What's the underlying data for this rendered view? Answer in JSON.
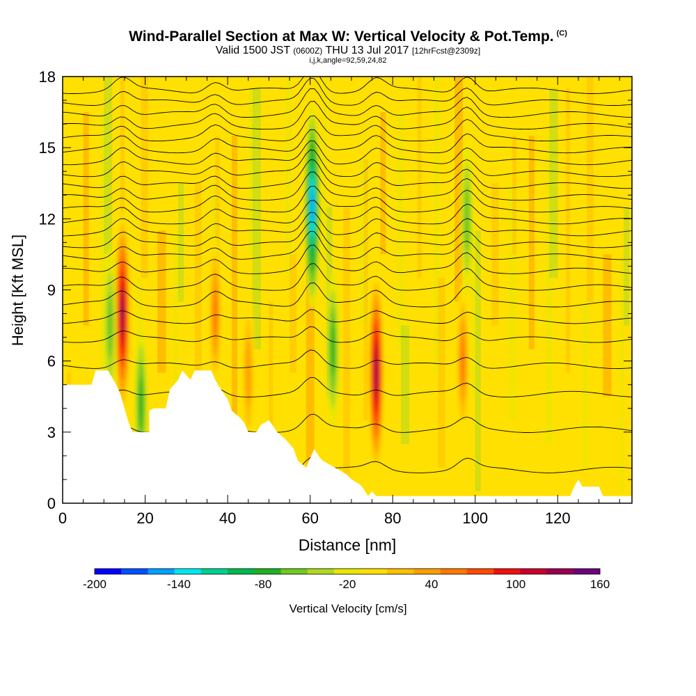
{
  "chart_data": {
    "type": "heatmap",
    "title": "Wind-Parallel Section at Max W: Vertical Velocity & Pot.Temp.",
    "title_suffix": "(C)",
    "subtitle_parts": [
      "Valid 1500 JST",
      "(0600Z)",
      "THU 13 Jul 2017",
      "[12hrFcst@2309z]"
    ],
    "subtitle2": "i,j,k,angle=92,59,24,82",
    "xlabel": "Distance [nm]",
    "ylabel": "Height [Kft MSL]",
    "xlim": [
      0,
      138
    ],
    "ylim": [
      0,
      18
    ],
    "xticks": [
      "0",
      "20",
      "40",
      "60",
      "80",
      "100",
      "120"
    ],
    "yticks": [
      "0",
      "3",
      "6",
      "9",
      "12",
      "15",
      "18"
    ],
    "colorbar": {
      "label": "Vertical Velocity [cm/s]",
      "range": [
        -200,
        160
      ],
      "step": 20,
      "tick_labels": [
        "-200",
        "-140",
        "-80",
        "-20",
        "40",
        "100",
        "160"
      ],
      "colors": [
        "#0000ff",
        "#0050ff",
        "#00a0ff",
        "#00e8f0",
        "#00d090",
        "#00b84c",
        "#20b020",
        "#70c820",
        "#b0d820",
        "#e8e800",
        "#ffe000",
        "#ffc000",
        "#ffa000",
        "#ff7800",
        "#ff4a00",
        "#f01010",
        "#c8002a",
        "#960050",
        "#6a0078"
      ]
    },
    "terrain_kft": [
      [
        0,
        5
      ],
      [
        7,
        5
      ],
      [
        8,
        5.6
      ],
      [
        11,
        5.6
      ],
      [
        13,
        5
      ],
      [
        14,
        4.6
      ],
      [
        15,
        4
      ],
      [
        16,
        3.4
      ],
      [
        17,
        3
      ],
      [
        21,
        3
      ],
      [
        21,
        3.9
      ],
      [
        22,
        4
      ],
      [
        25,
        4
      ],
      [
        26,
        4.8
      ],
      [
        28,
        5.2
      ],
      [
        29,
        5.6
      ],
      [
        31,
        5.2
      ],
      [
        32,
        5.6
      ],
      [
        33,
        5.6
      ],
      [
        36,
        5.6
      ],
      [
        37,
        5.2
      ],
      [
        38,
        4.9
      ],
      [
        40,
        4.4
      ],
      [
        41,
        3.9
      ],
      [
        43,
        3.6
      ],
      [
        44,
        3.4
      ],
      [
        45,
        3
      ],
      [
        47,
        3
      ],
      [
        48,
        3.3
      ],
      [
        50,
        3.5
      ],
      [
        52,
        3
      ],
      [
        54,
        2.7
      ],
      [
        56,
        2.3
      ],
      [
        57,
        1.8
      ],
      [
        59,
        1.5
      ],
      [
        60,
        1.9
      ],
      [
        61,
        2.3
      ],
      [
        62,
        2
      ],
      [
        63,
        1.8
      ],
      [
        65,
        1.6
      ],
      [
        67,
        1.4
      ],
      [
        69,
        1.2
      ],
      [
        70,
        1
      ],
      [
        72,
        0.8
      ],
      [
        73,
        0.6
      ],
      [
        74,
        0.3
      ],
      [
        75,
        0.5
      ],
      [
        76,
        0.3
      ],
      [
        78,
        0.3
      ],
      [
        123,
        0.3
      ],
      [
        124,
        0.7
      ],
      [
        125,
        1
      ],
      [
        126,
        0.7
      ],
      [
        130,
        0.7
      ],
      [
        131,
        0.3
      ],
      [
        138,
        0.3
      ]
    ],
    "theta_contour_base_kft": [
      1.4,
      3.1,
      4.6,
      5.8,
      6.9,
      7.7,
      8.4,
      9.1,
      9.8,
      10.4,
      10.9,
      11.4,
      11.9,
      12.4,
      12.9,
      13.4,
      13.9,
      14.4,
      14.9,
      15.4,
      15.9,
      16.4,
      16.9,
      17.4
    ],
    "w_cells": [
      {
        "x": 14.5,
        "z": 8,
        "w": 155
      },
      {
        "x": 76,
        "z": 5.5,
        "w": 150
      },
      {
        "x": 97,
        "z": 6,
        "w": 80
      },
      {
        "x": 37,
        "z": 8,
        "w": 70
      },
      {
        "x": 45,
        "z": 5.5,
        "w": 60
      },
      {
        "x": 60.5,
        "z": 12.5,
        "w": -160
      },
      {
        "x": 98,
        "z": 12,
        "w": -60
      },
      {
        "x": 65.5,
        "z": 6.5,
        "w": -70
      },
      {
        "x": 11.5,
        "z": 7.5,
        "w": -60
      },
      {
        "x": 19,
        "z": 4.2,
        "w": -70
      }
    ]
  }
}
